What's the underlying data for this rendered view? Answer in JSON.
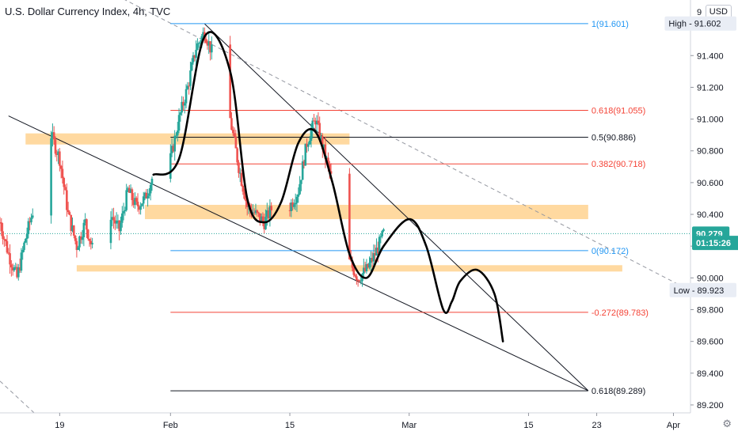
{
  "header": {
    "title": "U.S. Dollar Currency Index, 4h, TVC",
    "currency_label": "USD"
  },
  "settings_icon": "gear-icon",
  "colors": {
    "bull": "#26a69a",
    "bear": "#ef5350",
    "zone": "#ffcc80",
    "fib_blue": "#2196f3",
    "fib_red": "#f44336",
    "fib_black": "#131722",
    "price_tag": "#26a69a",
    "axis_text": "#131722"
  },
  "chart_data": {
    "type": "candlestick",
    "ylim": [
      89.15,
      91.75
    ],
    "x_range": [
      "2021-01-12",
      "2021-04-03"
    ],
    "y_ticks": [
      89.2,
      89.4,
      89.6,
      89.8,
      90.0,
      90.2,
      90.4,
      90.6,
      90.8,
      91.0,
      91.2,
      91.4
    ],
    "y_tick_labels": [
      "89.200",
      "89.400",
      "89.600",
      "89.800",
      "90.000",
      "",
      "90.400",
      "90.600",
      "90.800",
      "91.000",
      "91.200",
      "91.400"
    ],
    "top_partial_label": "9",
    "x_ticks": [
      {
        "date": "2021-01-19",
        "label": "19"
      },
      {
        "date": "2021-02-01",
        "label": "Feb"
      },
      {
        "date": "2021-02-15",
        "label": "15"
      },
      {
        "date": "2021-03-01",
        "label": "Mar"
      },
      {
        "date": "2021-03-15",
        "label": "15"
      },
      {
        "date": "2021-03-23",
        "label": "23"
      },
      {
        "date": "2021-04-01",
        "label": "Apr"
      }
    ],
    "price_path": [
      [
        "2021-01-12",
        90.35
      ],
      [
        "2021-01-13",
        90.15
      ],
      [
        "2021-01-14",
        90.0
      ],
      [
        "2021-01-15",
        90.25
      ],
      [
        "2021-01-16",
        90.45
      ],
      [
        "2021-01-17",
        90.75
      ],
      [
        "2021-01-18",
        90.9
      ],
      [
        "2021-01-19",
        90.75
      ],
      [
        "2021-01-20",
        90.4
      ],
      [
        "2021-01-21",
        90.2
      ],
      [
        "2021-01-22",
        90.35
      ],
      [
        "2021-01-23",
        90.15
      ],
      [
        "2021-01-24",
        90.3
      ],
      [
        "2021-01-25",
        90.4
      ],
      [
        "2021-01-26",
        90.3
      ],
      [
        "2021-01-27",
        90.55
      ],
      [
        "2021-01-28",
        90.45
      ],
      [
        "2021-01-29",
        90.5
      ],
      [
        "2021-01-30",
        90.65
      ],
      [
        "2021-01-31",
        90.55
      ],
      [
        "2021-02-01",
        90.75
      ],
      [
        "2021-02-02",
        91.0
      ],
      [
        "2021-02-03",
        91.2
      ],
      [
        "2021-02-04",
        91.45
      ],
      [
        "2021-02-05",
        91.55
      ],
      [
        "2021-02-06",
        91.4
      ],
      [
        "2021-02-07",
        91.3
      ],
      [
        "2021-02-08",
        91.0
      ],
      [
        "2021-02-09",
        90.7
      ],
      [
        "2021-02-10",
        90.45
      ],
      [
        "2021-02-11",
        90.4
      ],
      [
        "2021-02-12",
        90.35
      ],
      [
        "2021-02-13",
        90.45
      ],
      [
        "2021-02-14",
        90.5
      ],
      [
        "2021-02-15",
        90.45
      ],
      [
        "2021-02-16",
        90.55
      ],
      [
        "2021-02-17",
        90.85
      ],
      [
        "2021-02-18",
        91.0
      ],
      [
        "2021-02-19",
        90.8
      ],
      [
        "2021-02-20",
        90.6
      ],
      [
        "2021-02-21",
        90.35
      ],
      [
        "2021-02-22",
        90.1
      ],
      [
        "2021-02-23",
        90.0
      ],
      [
        "2021-02-24",
        90.05
      ],
      [
        "2021-02-25",
        90.15
      ],
      [
        "2021-02-26",
        90.279
      ]
    ],
    "fib_levels": [
      {
        "label": "1(91.601)",
        "value": 91.601,
        "color": "fib_blue",
        "x_start": "2021-02-01",
        "x_end": "2021-03-22"
      },
      {
        "label": "0.618(91.055)",
        "value": 91.055,
        "color": "fib_red",
        "x_start": "2021-02-01",
        "x_end": "2021-03-22"
      },
      {
        "label": "0.5(90.886)",
        "value": 90.886,
        "color": "fib_black",
        "x_start": "2021-02-01",
        "x_end": "2021-03-22"
      },
      {
        "label": "0.382(90.718)",
        "value": 90.718,
        "color": "fib_red",
        "x_start": "2021-02-01",
        "x_end": "2021-03-22"
      },
      {
        "label": "0(90.172)",
        "value": 90.172,
        "color": "fib_blue",
        "x_start": "2021-02-01",
        "x_end": "2021-03-22"
      },
      {
        "label": "-0.272(89.783)",
        "value": 89.783,
        "color": "fib_red",
        "x_start": "2021-02-01",
        "x_end": "2021-03-22"
      },
      {
        "label": "0.618(89.289)",
        "value": 89.289,
        "color": "fib_black",
        "x_start": "2021-02-01",
        "x_end": "2021-03-22"
      }
    ],
    "zones": [
      {
        "x_start": "2021-01-15",
        "x_end": "2021-02-22",
        "y_low": 90.84,
        "y_high": 90.91
      },
      {
        "x_start": "2021-01-29",
        "x_end": "2021-03-22",
        "y_low": 90.37,
        "y_high": 90.46
      },
      {
        "x_start": "2021-01-21",
        "x_end": "2021-03-26",
        "y_low": 90.04,
        "y_high": 90.08
      }
    ],
    "lines": [
      {
        "from": [
          "2021-01-13",
          91.02
        ],
        "to": [
          "2021-03-22",
          89.29
        ],
        "color": "#131722",
        "dash": false
      },
      {
        "from": [
          "2021-02-05",
          91.6
        ],
        "to": [
          "2021-03-22",
          89.29
        ],
        "color": "#131722",
        "dash": false
      },
      {
        "from": [
          "2021-01-22",
          91.88
        ],
        "to": [
          "2021-04-03",
          89.92
        ],
        "color": "#9598a1",
        "dash": true
      },
      {
        "from": [
          "2021-01-12",
          89.35
        ],
        "to": [
          "2021-01-16",
          89.15
        ],
        "color": "#9598a1",
        "dash": true
      }
    ],
    "projection_path": [
      [
        "2021-01-30",
        90.65
      ],
      [
        "2021-02-02",
        90.75
      ],
      [
        "2021-02-05",
        91.52
      ],
      [
        "2021-02-08",
        91.3
      ],
      [
        "2021-02-10",
        90.5
      ],
      [
        "2021-02-12",
        90.35
      ],
      [
        "2021-02-14",
        90.48
      ],
      [
        "2021-02-16",
        90.85
      ],
      [
        "2021-02-18",
        90.92
      ],
      [
        "2021-02-20",
        90.6
      ],
      [
        "2021-02-22",
        90.15
      ],
      [
        "2021-02-24",
        90.0
      ],
      [
        "2021-02-26",
        90.2
      ],
      [
        "2021-03-01",
        90.37
      ],
      [
        "2021-03-03",
        90.2
      ],
      [
        "2021-03-05",
        89.8
      ],
      [
        "2021-03-06",
        89.85
      ],
      [
        "2021-03-07",
        89.98
      ],
      [
        "2021-03-09",
        90.05
      ],
      [
        "2021-03-11",
        89.9
      ],
      [
        "2021-03-12",
        89.6
      ]
    ],
    "price_tags": [
      {
        "label": "High - 91.602",
        "value": 91.602,
        "style": "gray"
      },
      {
        "label": "90.279",
        "value": 90.279,
        "style": "green"
      },
      {
        "label": "01:15:26",
        "value": 90.22,
        "style": "green"
      },
      {
        "label": "Low - 89.923",
        "value": 89.923,
        "style": "gray"
      }
    ],
    "last_price": 90.279
  }
}
